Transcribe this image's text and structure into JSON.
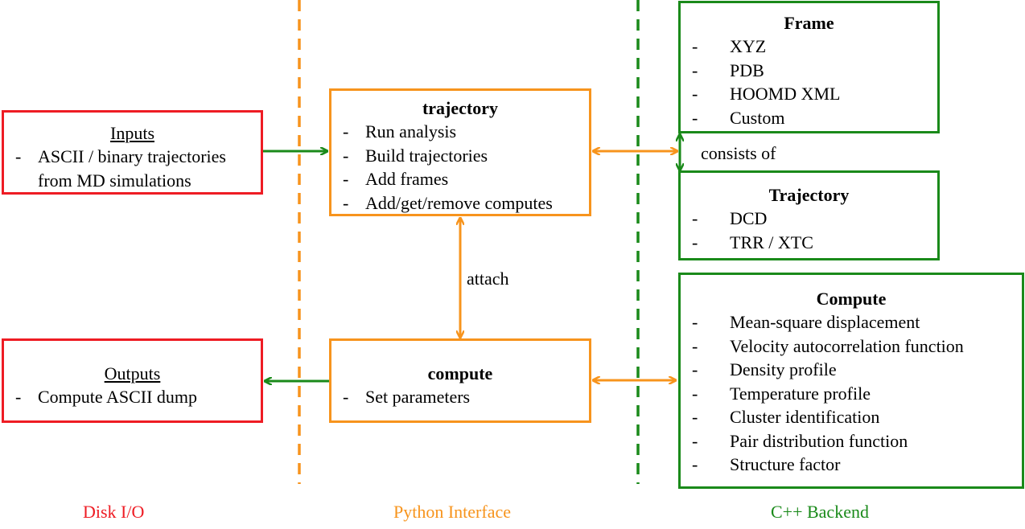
{
  "inputs": {
    "title": "Inputs",
    "items": [
      "ASCII / binary trajectories",
      "from MD simulations"
    ]
  },
  "outputs": {
    "title": "Outputs",
    "items": [
      "Compute ASCII dump"
    ]
  },
  "trajectory_py": {
    "title": "trajectory",
    "items": [
      "Run analysis",
      "Build trajectories",
      "Add frames",
      "Add/get/remove computes"
    ]
  },
  "compute_py": {
    "title": "compute",
    "items": [
      "Set parameters"
    ]
  },
  "frame": {
    "title": "Frame",
    "items": [
      "XYZ",
      "PDB",
      "HOOMD XML",
      "Custom"
    ]
  },
  "trajectory_cpp": {
    "title": "Trajectory",
    "items": [
      "DCD",
      "TRR / XTC"
    ]
  },
  "compute_cpp": {
    "title": "Compute",
    "items": [
      "Mean-square displacement",
      "Velocity autocorrelation function",
      "Density profile",
      "Temperature profile",
      "Cluster identification",
      "Pair distribution function",
      "Structure factor"
    ]
  },
  "labels": {
    "attach": "attach",
    "consists_of": "consists of",
    "dash": "-"
  },
  "lanes": {
    "disk_io": "Disk I/O",
    "python": "Python Interface",
    "cpp": "C++ Backend"
  },
  "colors": {
    "disk_io": "#ee1c24",
    "python": "#f7941d",
    "cpp": "#1a8a1a"
  }
}
